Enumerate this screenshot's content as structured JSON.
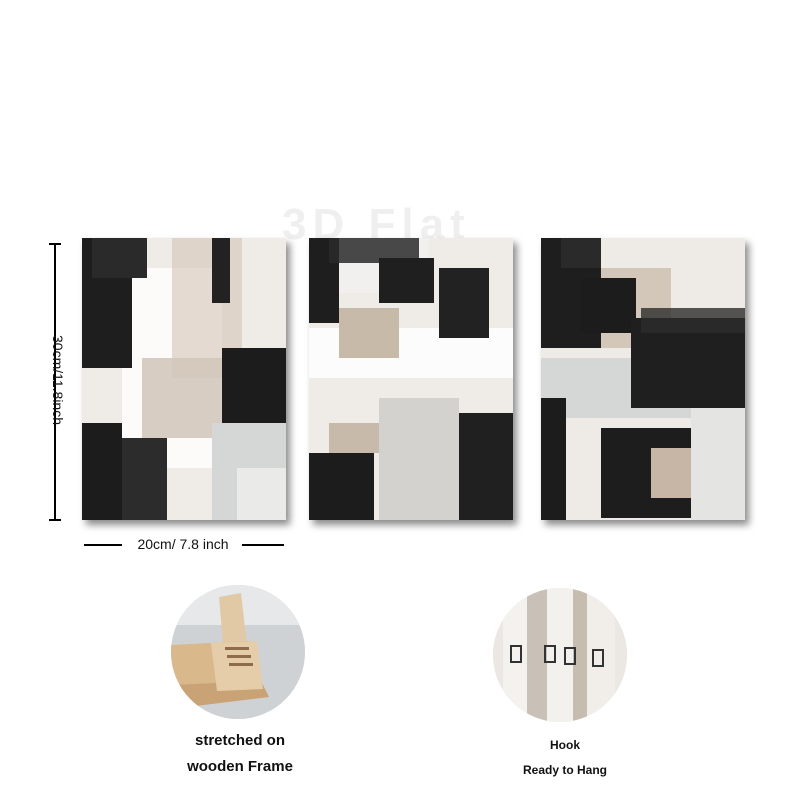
{
  "watermark": "3D Flat",
  "dimensions": {
    "height_label": "30cm/11.8inch",
    "width_label": "20cm/ 7.8 inch"
  },
  "features": [
    {
      "name": "frame",
      "lines": [
        "stretched on",
        "wooden Frame"
      ]
    },
    {
      "name": "hook",
      "lines": [
        "Hook",
        "Ready to Hang"
      ]
    }
  ],
  "colors": {
    "ink": "#1a1a1a",
    "beige": "#c4b6a8",
    "canvas": "#efebe6",
    "grey": "#d5d7d6",
    "wood": "#d9b88c"
  }
}
